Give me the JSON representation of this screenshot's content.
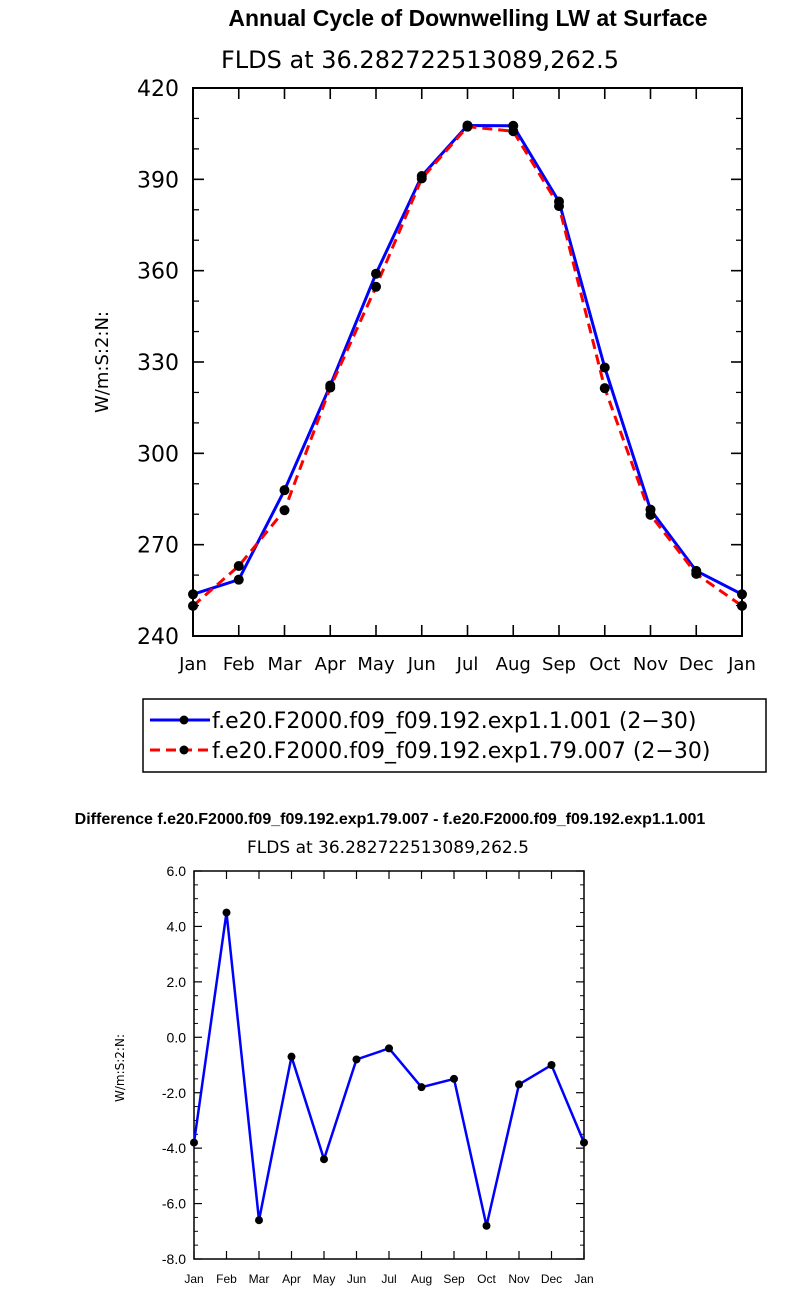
{
  "chart_data": [
    {
      "type": "line",
      "title": "Annual Cycle of Downwelling LW at Surface",
      "subtitle": "FLDS at 36.282722513089,262.5",
      "xlabel": "",
      "ylabel": "W/m:S:2:N:",
      "categories": [
        "Jan",
        "Feb",
        "Mar",
        "Apr",
        "May",
        "Jun",
        "Jul",
        "Aug",
        "Sep",
        "Oct",
        "Nov",
        "Dec",
        "Jan"
      ],
      "ylim": [
        240,
        420
      ],
      "yticks": [
        "240",
        "270",
        "300",
        "330",
        "360",
        "390",
        "420"
      ],
      "series": [
        {
          "name": "f.e20.F2000.f09_f09.192.exp1.1.001 (2−30)",
          "color": "#0000ff",
          "dash": "solid",
          "values": [
            253.7,
            258.5,
            287.9,
            322.3,
            359.0,
            391.1,
            407.7,
            407.6,
            382.7,
            328.2,
            281.5,
            261.4,
            253.7
          ]
        },
        {
          "name": "f.e20.F2000.f09_f09.192.exp1.79.007 (2−30)",
          "color": "#ff0000",
          "dash": "dashed",
          "values": [
            249.9,
            263.0,
            281.3,
            321.6,
            354.7,
            390.3,
            407.3,
            405.8,
            381.2,
            321.4,
            279.8,
            260.4,
            249.9
          ]
        }
      ]
    },
    {
      "type": "line",
      "title": "Difference f.e20.F2000.f09_f09.192.exp1.79.007 - f.e20.F2000.f09_f09.192.exp1.1.001",
      "subtitle": "FLDS at 36.282722513089,262.5",
      "xlabel": "",
      "ylabel": "W/m:S:2:N:",
      "categories": [
        "Jan",
        "Feb",
        "Mar",
        "Apr",
        "May",
        "Jun",
        "Jul",
        "Aug",
        "Sep",
        "Oct",
        "Nov",
        "Dec",
        "Jan"
      ],
      "ylim": [
        -8.0,
        6.0
      ],
      "yticks": [
        "-8.0",
        "-6.0",
        "-4.0",
        "-2.0",
        "0.0",
        "2.0",
        "4.0",
        "6.0"
      ],
      "series": [
        {
          "name": "difference",
          "color": "#0000ff",
          "dash": "solid",
          "values": [
            -3.8,
            4.5,
            -6.6,
            -0.7,
            -4.4,
            -0.8,
            -0.4,
            -1.8,
            -1.5,
            -6.8,
            -1.7,
            -1.0,
            -3.8
          ]
        }
      ]
    }
  ]
}
